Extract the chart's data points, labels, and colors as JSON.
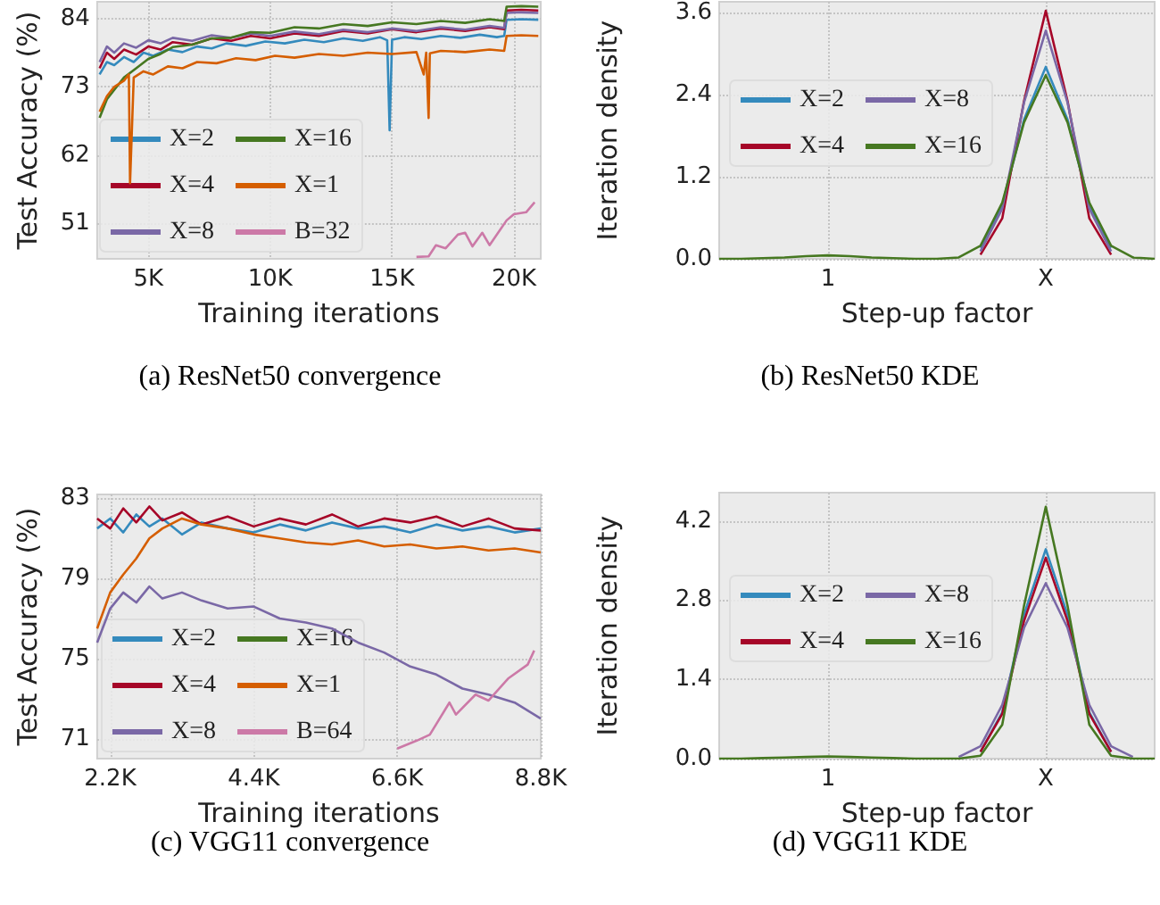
{
  "chart_data": [
    {
      "type": "line",
      "title": "(a) ResNet50 convergence",
      "xlabel": "Training iterations",
      "ylabel": "Test Accuracy (%)",
      "xlim": [
        2900,
        21100
      ],
      "ylim": [
        45.3,
        86.7
      ],
      "xticks": [
        {
          "value": 5000,
          "label": "5K"
        },
        {
          "value": 10000,
          "label": "10K"
        },
        {
          "value": 15000,
          "label": "15K"
        },
        {
          "value": 20000,
          "label": "20K"
        }
      ],
      "yticks": [
        51,
        62,
        73,
        84
      ],
      "grid": true,
      "legend": "bottom left",
      "series": [
        {
          "name": "X=2",
          "color": "#348abd",
          "x": [
            3000,
            3300,
            3600,
            4000,
            4400,
            4800,
            5200,
            5800,
            6400,
            7000,
            7600,
            8200,
            9000,
            9800,
            10600,
            11400,
            12200,
            13000,
            13800,
            14500,
            14800,
            14900,
            15000,
            15500,
            16200,
            17000,
            17800,
            18600,
            19300,
            19600,
            19700,
            20300,
            21000
          ],
          "values": [
            75,
            77,
            76.5,
            77.8,
            77,
            78.5,
            78,
            79,
            78.6,
            79.5,
            79.2,
            80,
            79.6,
            80.3,
            80,
            80.6,
            80.2,
            80.8,
            80.4,
            81,
            80.5,
            66,
            80.6,
            81,
            80.7,
            81.2,
            80.9,
            81.4,
            81,
            81.2,
            83.8,
            83.9,
            83.8
          ]
        },
        {
          "name": "X=4",
          "color": "#a60628",
          "x": [
            3000,
            3300,
            3600,
            4000,
            4500,
            5000,
            5500,
            6000,
            6800,
            7600,
            8400,
            9200,
            10000,
            11000,
            12000,
            13000,
            14000,
            15000,
            16000,
            17000,
            18000,
            19000,
            19600,
            19700,
            20300,
            21000
          ],
          "values": [
            76,
            78.5,
            77.5,
            79,
            78.2,
            79.5,
            79,
            80.2,
            79.8,
            80.8,
            80.4,
            81.2,
            80.8,
            81.6,
            81.2,
            82,
            81.6,
            82.3,
            81.8,
            82.4,
            82,
            82.6,
            82.3,
            85.3,
            85.4,
            85.3
          ]
        },
        {
          "name": "X=8",
          "color": "#7a68a6",
          "x": [
            3000,
            3300,
            3600,
            4000,
            4500,
            5000,
            5500,
            6000,
            6800,
            7600,
            8400,
            9200,
            10000,
            11000,
            12000,
            13000,
            14000,
            15000,
            16000,
            17000,
            18000,
            19000,
            19600,
            19700,
            20300,
            21000
          ],
          "values": [
            77,
            79.5,
            78.5,
            80,
            79.3,
            80.5,
            80,
            80.9,
            80.4,
            81.3,
            80.9,
            81.6,
            81.2,
            81.9,
            81.5,
            82.2,
            81.8,
            82.4,
            82,
            82.6,
            82.2,
            82.8,
            82.5,
            84.9,
            85,
            84.9
          ]
        },
        {
          "name": "X=16",
          "color": "#467821",
          "x": [
            3000,
            3300,
            3600,
            4000,
            4500,
            5000,
            5500,
            6000,
            6800,
            7600,
            8400,
            9200,
            10000,
            11000,
            12000,
            13000,
            14000,
            15000,
            16000,
            17000,
            18000,
            19000,
            19600,
            19700,
            20300,
            21000
          ],
          "values": [
            68,
            71,
            72.5,
            74.5,
            76,
            77.5,
            78.3,
            79.4,
            79.8,
            80.8,
            80.9,
            81.8,
            81.7,
            82.6,
            82.4,
            83.1,
            82.8,
            83.4,
            83.1,
            83.6,
            83.3,
            83.9,
            83.6,
            85.9,
            86,
            85.9
          ]
        },
        {
          "name": "X=1",
          "color": "#d55e00",
          "x": [
            3000,
            3300,
            3600,
            4000,
            4200,
            4250,
            4400,
            4800,
            5200,
            5800,
            6400,
            7000,
            7800,
            8600,
            9400,
            10200,
            11000,
            12000,
            13000,
            14000,
            15000,
            16000,
            16300,
            16400,
            16500,
            16550,
            17000,
            18000,
            19000,
            19600,
            19700,
            20300,
            21000
          ],
          "values": [
            69,
            71.5,
            73,
            74,
            75,
            57.5,
            74.5,
            75.5,
            75,
            76.3,
            76,
            77,
            76.8,
            77.6,
            77.3,
            78,
            77.7,
            78.3,
            78,
            78.5,
            78.3,
            78.6,
            75,
            78.5,
            68,
            78.4,
            78.8,
            78.6,
            79,
            78.8,
            81.2,
            81.3,
            81.2
          ]
        },
        {
          "name": "B=32",
          "color": "#cc79a7",
          "x": [
            16000,
            16500,
            16800,
            17200,
            17700,
            18000,
            18300,
            18700,
            19000,
            19700,
            20000,
            20500,
            20850
          ],
          "values": [
            45.6,
            45.7,
            47.5,
            47,
            49.2,
            49.5,
            47.3,
            49.5,
            47.5,
            51.5,
            52.5,
            52.8,
            54.4
          ]
        }
      ]
    },
    {
      "type": "line",
      "title": "(b) ResNet50 KDE",
      "xlabel": "Step-up factor",
      "ylabel": "Iteration density",
      "ylim": [
        0,
        3.75
      ],
      "categories": [
        null,
        null,
        null,
        null,
        null,
        "1",
        null,
        null,
        null,
        null,
        null,
        null,
        null,
        null,
        null,
        "X",
        null,
        null,
        null,
        null,
        null
      ],
      "yticks": [
        {
          "value": 0,
          "label": "0.0"
        },
        1.2,
        2.4,
        3.6
      ],
      "grid": true,
      "legend": "left",
      "series": [
        {
          "name": "X=2",
          "color": "#348abd",
          "values": [
            null,
            null,
            null,
            null,
            null,
            null,
            null,
            null,
            null,
            null,
            null,
            null,
            0.16,
            0.78,
            2.03,
            2.8,
            2.03,
            0.78,
            0.16,
            null,
            null
          ]
        },
        {
          "name": "X=4",
          "color": "#a60628",
          "values": [
            null,
            null,
            null,
            null,
            null,
            null,
            null,
            null,
            null,
            null,
            null,
            null,
            0.06,
            0.59,
            2.3,
            3.62,
            2.3,
            0.59,
            0.06,
            null,
            null
          ]
        },
        {
          "name": "X=8",
          "color": "#7a68a6",
          "values": [
            null,
            null,
            null,
            null,
            null,
            null,
            null,
            null,
            null,
            null,
            null,
            null,
            0.11,
            0.73,
            2.28,
            3.33,
            2.28,
            0.73,
            0.11,
            null,
            null
          ]
        },
        {
          "name": "X=16",
          "color": "#467821",
          "values": [
            0,
            0,
            0.01,
            0.02,
            0.04,
            0.05,
            0.04,
            0.02,
            0.01,
            0,
            0,
            0.02,
            0.19,
            0.82,
            1.99,
            2.68,
            1.99,
            0.82,
            0.19,
            0.02,
            0
          ]
        }
      ]
    },
    {
      "type": "line",
      "title": "(c) VGG11 convergence",
      "xlabel": "Training iterations",
      "ylabel": "Test Accuracy (%)",
      "xlim": [
        2000,
        8800
      ],
      "ylim": [
        70,
        83.2
      ],
      "xticks": [
        {
          "value": 2200,
          "label": "2.2K"
        },
        {
          "value": 4400,
          "label": "4.4K"
        },
        {
          "value": 6600,
          "label": "6.6K"
        },
        {
          "value": 8800,
          "label": "8.8K"
        }
      ],
      "yticks": [
        71,
        75,
        79,
        83
      ],
      "grid": true,
      "legend": "bottom left",
      "x": [
        2000,
        2200,
        2400,
        2600,
        2800,
        3000,
        3300,
        3600,
        4000,
        4400,
        4800,
        5200,
        5600,
        6000,
        6400,
        6800,
        7200,
        7600,
        8000,
        8400,
        8800
      ],
      "series": [
        {
          "name": "X=2",
          "color": "#348abd",
          "values": [
            81.5,
            82,
            81.3,
            82.2,
            81.6,
            82,
            81.2,
            81.8,
            81.5,
            81.3,
            81.7,
            81.4,
            81.8,
            81.5,
            81.6,
            81.3,
            81.7,
            81.4,
            81.6,
            81.3,
            81.5
          ]
        },
        {
          "name": "X=4",
          "color": "#a60628",
          "values": [
            82,
            81.5,
            82.5,
            81.8,
            82.6,
            81.9,
            82.3,
            81.7,
            82.1,
            81.6,
            82,
            81.7,
            82.2,
            81.6,
            82,
            81.8,
            82.1,
            81.6,
            82,
            81.5,
            81.4
          ]
        },
        {
          "name": "X=8",
          "color": "#7a68a6",
          "values": [
            75.8,
            77.5,
            78.3,
            77.8,
            78.6,
            78,
            78.3,
            77.9,
            77.5,
            77.6,
            77,
            76.8,
            76.5,
            75.8,
            75.3,
            74.6,
            74.2,
            73.5,
            73.2,
            72.8,
            72
          ]
        },
        {
          "name": "X=16",
          "color": "#467821",
          "values": [
            null,
            null,
            null,
            null,
            null,
            null,
            null,
            null,
            null,
            null,
            null,
            null,
            null,
            null,
            null,
            null,
            null,
            null,
            null,
            null,
            null
          ]
        },
        {
          "name": "X=1",
          "color": "#d55e00",
          "values": [
            76.5,
            78.3,
            79.2,
            80,
            81,
            81.5,
            82,
            81.7,
            81.5,
            81.2,
            81,
            80.8,
            80.7,
            80.9,
            80.6,
            80.7,
            80.5,
            80.6,
            80.4,
            80.5,
            80.3
          ]
        },
        {
          "name": "B=64",
          "color": "#cc79a7",
          "x": [
            6600,
            6900,
            7100,
            7400,
            7500,
            7800,
            8000,
            8300,
            8600,
            8700
          ],
          "values": [
            70.5,
            70.9,
            71.2,
            72.8,
            72.2,
            73.2,
            72.9,
            74,
            74.7,
            75.4
          ]
        }
      ]
    },
    {
      "type": "line",
      "title": "(d) VGG11 KDE",
      "xlabel": "Step-up factor",
      "ylabel": "Iteration density",
      "ylim": [
        0,
        4.7
      ],
      "categories": [
        null,
        null,
        null,
        null,
        null,
        "1",
        null,
        null,
        null,
        null,
        null,
        null,
        null,
        null,
        null,
        "X",
        null,
        null,
        null,
        null,
        null
      ],
      "yticks": [
        {
          "value": 0,
          "label": "0.0"
        },
        1.4,
        2.8,
        4.2
      ],
      "grid": true,
      "legend": "left",
      "series": [
        {
          "name": "X=2",
          "color": "#348abd",
          "values": [
            null,
            null,
            null,
            null,
            null,
            null,
            null,
            null,
            null,
            null,
            null,
            null,
            0.12,
            0.82,
            2.54,
            3.7,
            2.54,
            0.82,
            0.12,
            null,
            null
          ]
        },
        {
          "name": "X=4",
          "color": "#a60628",
          "values": [
            null,
            null,
            null,
            null,
            null,
            null,
            null,
            null,
            null,
            null,
            null,
            null,
            0.12,
            0.79,
            2.43,
            3.55,
            2.43,
            0.79,
            0.12,
            null,
            null
          ]
        },
        {
          "name": "X=8",
          "color": "#7a68a6",
          "values": [
            null,
            null,
            null,
            null,
            null,
            null,
            null,
            null,
            null,
            null,
            null,
            0.03,
            0.22,
            0.95,
            2.31,
            3.1,
            2.31,
            0.95,
            0.22,
            0.03,
            null
          ]
        },
        {
          "name": "X=16",
          "color": "#467821",
          "values": [
            0,
            0,
            0.01,
            0.02,
            0.03,
            0.04,
            0.03,
            0.02,
            0.01,
            0,
            0,
            0,
            0.05,
            0.6,
            2.7,
            4.45,
            2.7,
            0.6,
            0.05,
            0,
            0
          ]
        }
      ]
    }
  ]
}
